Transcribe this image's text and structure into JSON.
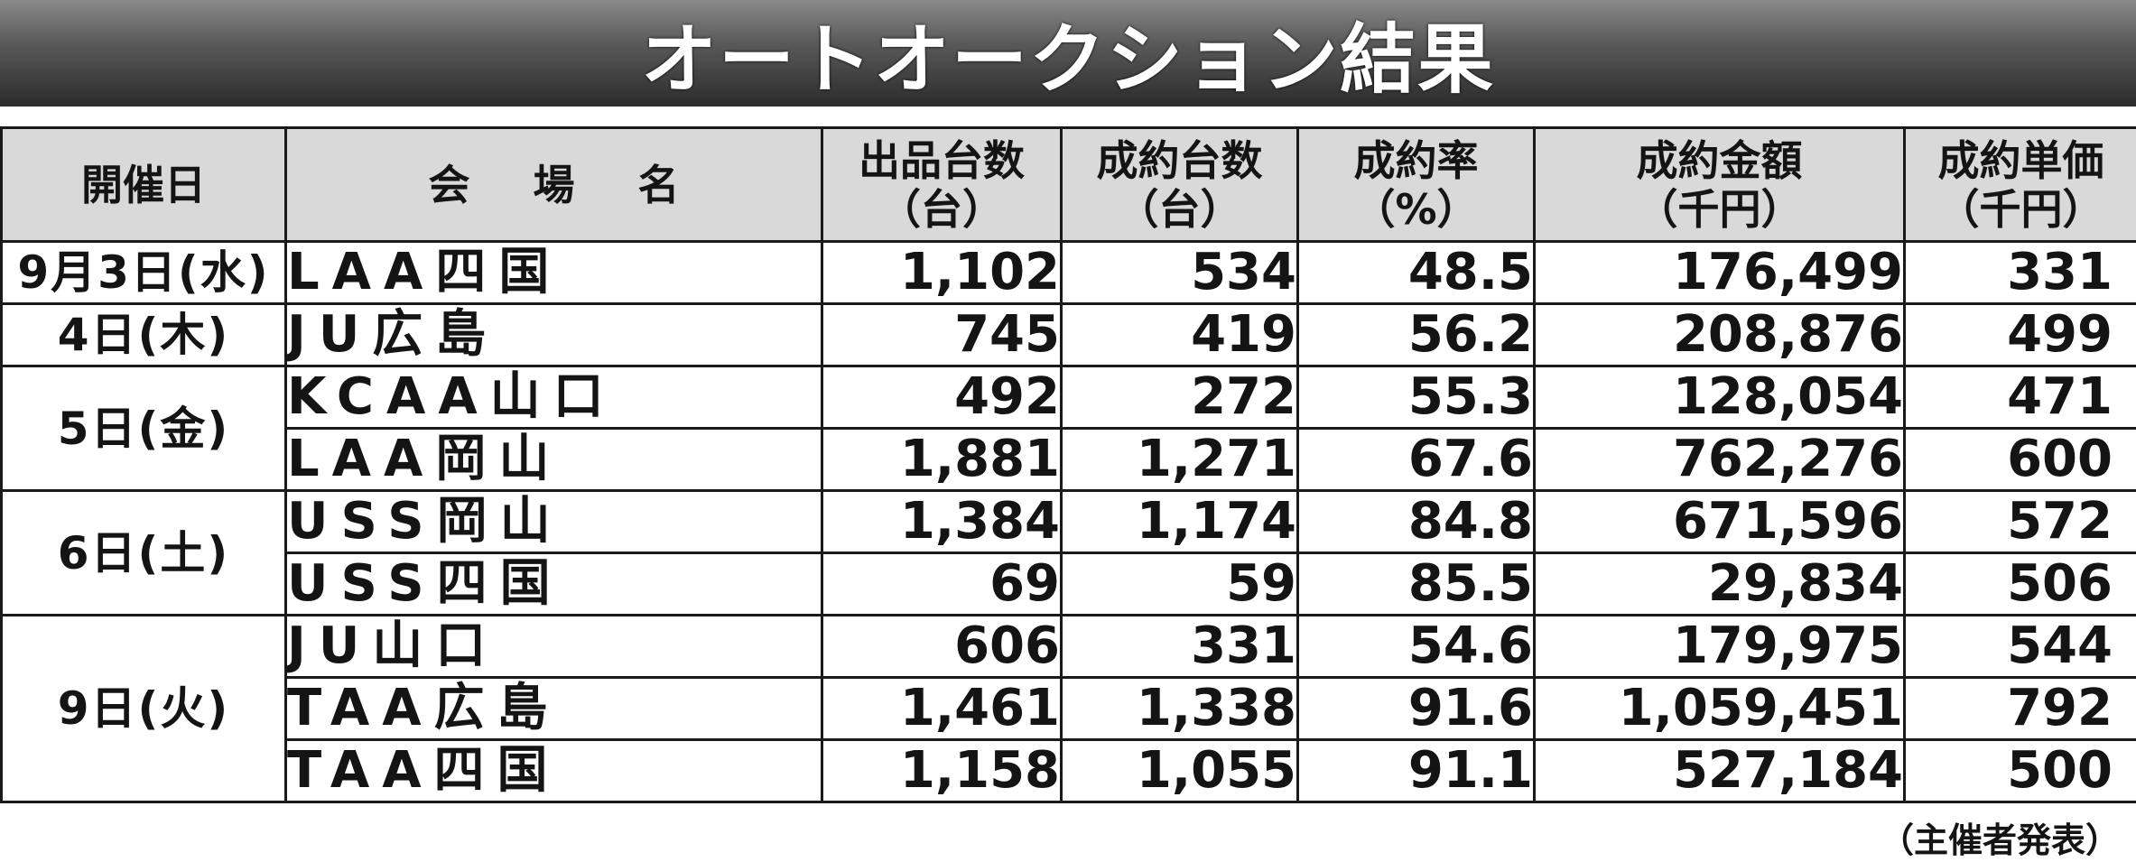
{
  "title": "オートオークション結果",
  "headers": [
    {
      "label": "開催日",
      "unit": ""
    },
    {
      "label": "会場名",
      "unit": ""
    },
    {
      "label": "出品台数",
      "unit": "（台）"
    },
    {
      "label": "成約台数",
      "unit": "（台）"
    },
    {
      "label": "成約率",
      "unit": "（%）"
    },
    {
      "label": "成約金額",
      "unit": "（千円）"
    },
    {
      "label": "成約単価",
      "unit": "（千円）"
    }
  ],
  "rows": [
    {
      "date": "9月3日(水)",
      "venue": "LAA四国",
      "listed": "1,102",
      "sold": "534",
      "rate": "48.5",
      "amount": "176,499",
      "unit_price": "331"
    },
    {
      "date": "4日(木)",
      "venue": "JU広島",
      "listed": "745",
      "sold": "419",
      "rate": "56.2",
      "amount": "208,876",
      "unit_price": "499"
    },
    {
      "date": "5日(金)",
      "venue": "KCAA山口",
      "listed": "492",
      "sold": "272",
      "rate": "55.3",
      "amount": "128,054",
      "unit_price": "471"
    },
    {
      "date": "",
      "venue": "LAA岡山",
      "listed": "1,881",
      "sold": "1,271",
      "rate": "67.6",
      "amount": "762,276",
      "unit_price": "600"
    },
    {
      "date": "6日(土)",
      "venue": "USS岡山",
      "listed": "1,384",
      "sold": "1,174",
      "rate": "84.8",
      "amount": "671,596",
      "unit_price": "572"
    },
    {
      "date": "",
      "venue": "USS四国",
      "listed": "69",
      "sold": "59",
      "rate": "85.5",
      "amount": "29,834",
      "unit_price": "506"
    },
    {
      "date": "9日(火)",
      "venue": "JU山口",
      "listed": "606",
      "sold": "331",
      "rate": "54.6",
      "amount": "179,975",
      "unit_price": "544"
    },
    {
      "date": "",
      "venue": "TAA広島",
      "listed": "1,461",
      "sold": "1,338",
      "rate": "91.6",
      "amount": "1,059,451",
      "unit_price": "792"
    },
    {
      "date": "",
      "venue": "TAA四国",
      "listed": "1,158",
      "sold": "1,055",
      "rate": "91.1",
      "amount": "527,184",
      "unit_price": "500"
    }
  ],
  "footnote": "（主催者発表）"
}
